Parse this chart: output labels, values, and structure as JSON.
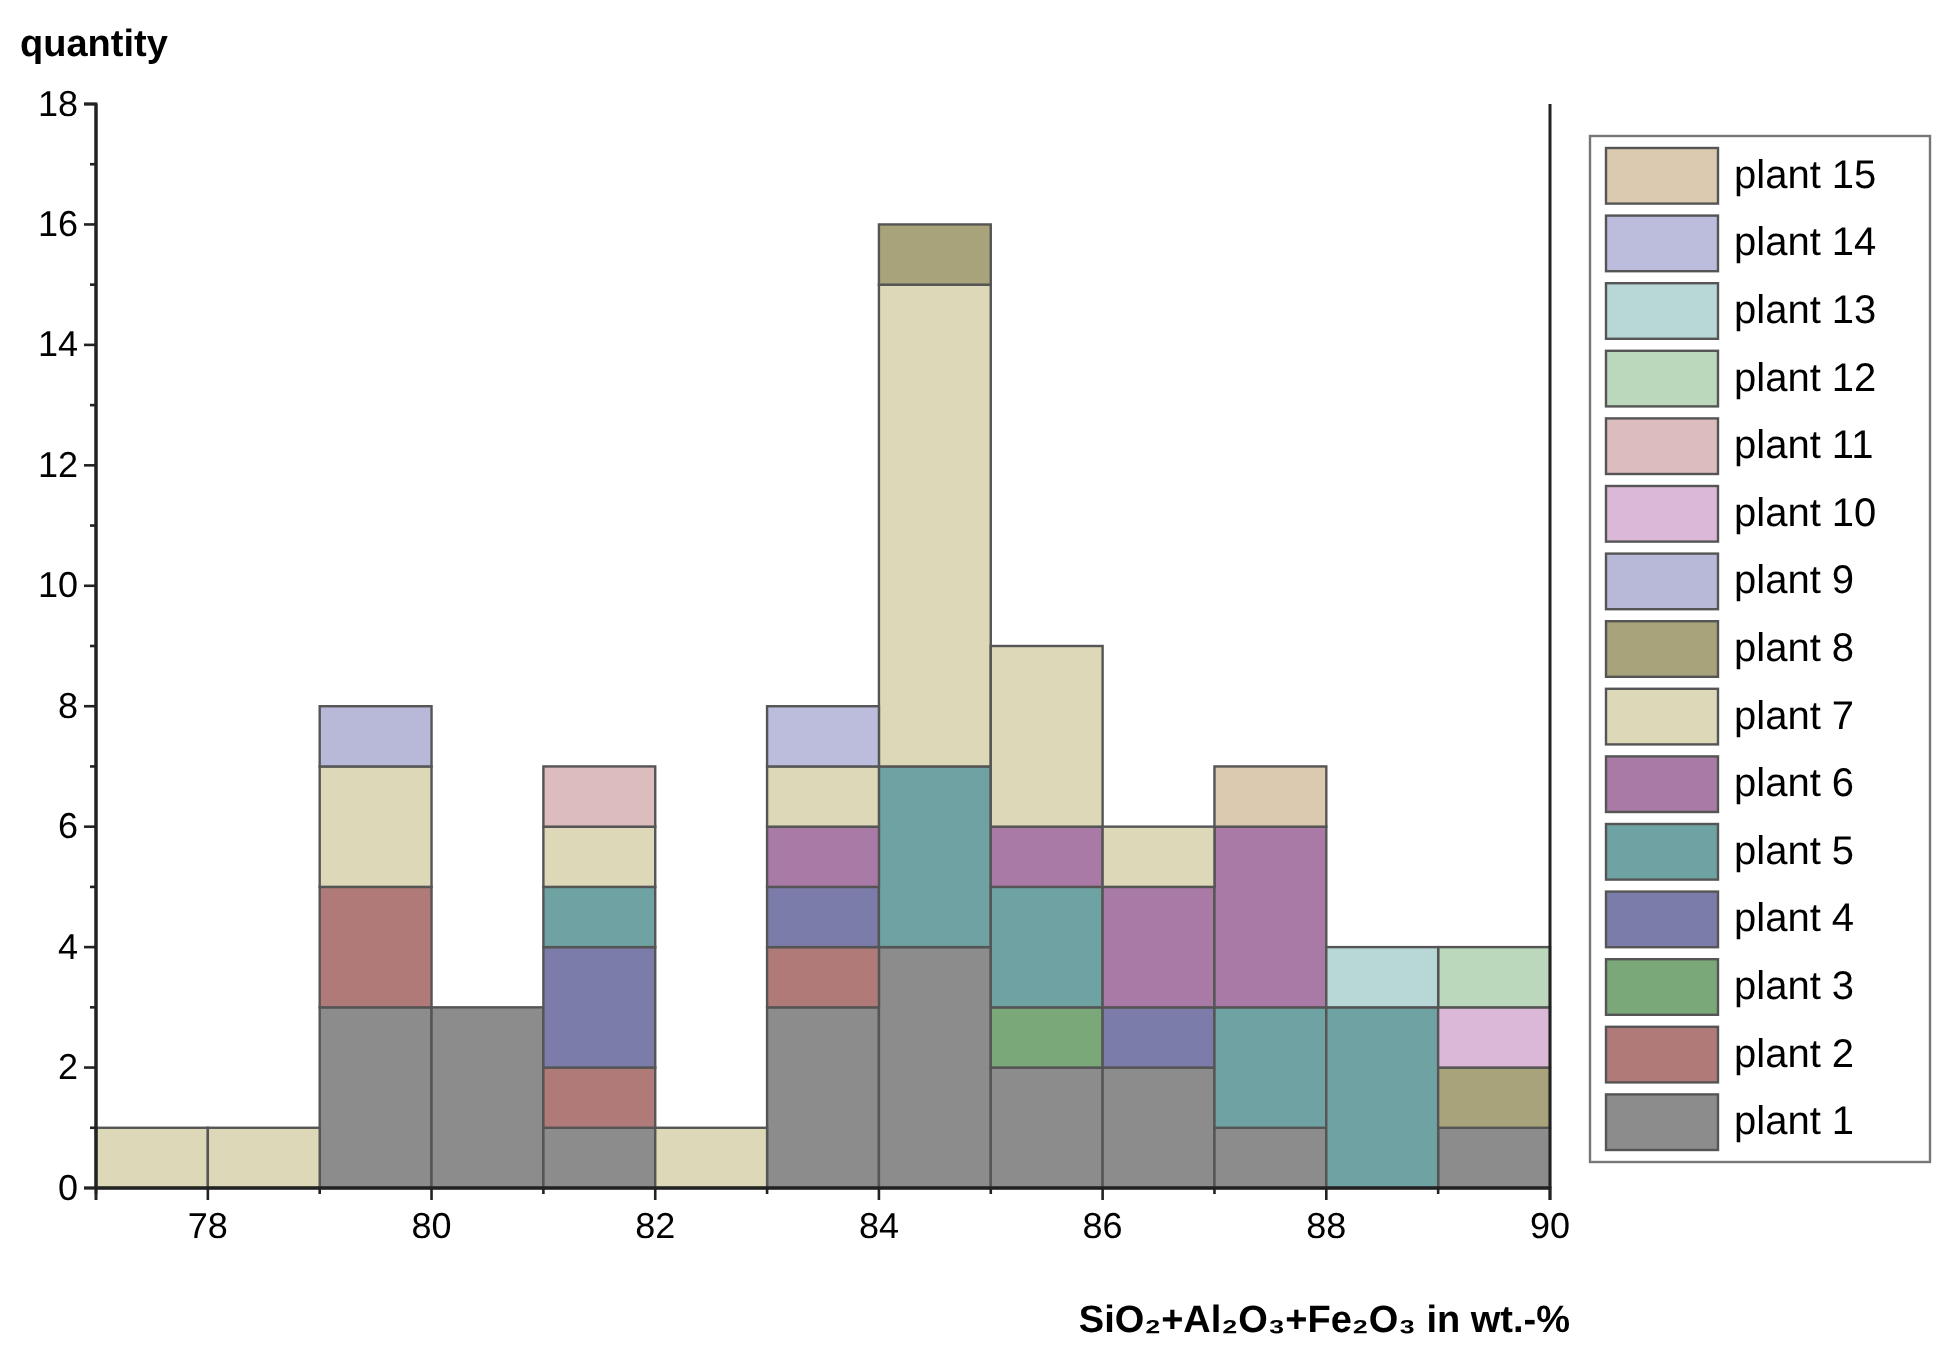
{
  "chart_data": {
    "type": "bar",
    "stacked": true,
    "ylabel": "quantity",
    "xlabel": "SiO₂+Al₂O₃+Fe₂O₃ in wt.-%",
    "x": [
      77.5,
      78.5,
      79.5,
      80.5,
      81.5,
      82.5,
      83.5,
      84.5,
      85.5,
      86.5,
      87.5,
      88.5,
      89.5
    ],
    "xlim": [
      77,
      90
    ],
    "xticks": [
      {
        "value": 77,
        "label": null
      },
      78,
      {
        "value": 79,
        "label": null
      },
      80,
      {
        "value": 81,
        "label": null
      },
      82,
      {
        "value": 83,
        "label": null
      },
      84,
      {
        "value": 85,
        "label": null
      },
      86,
      {
        "value": 87,
        "label": null
      },
      88,
      {
        "value": 89,
        "label": null
      },
      90
    ],
    "ylim": [
      0,
      18
    ],
    "yticks": [
      0,
      {
        "value": 1,
        "label": null
      },
      2,
      {
        "value": 3,
        "label": null
      },
      4,
      {
        "value": 5,
        "label": null
      },
      6,
      {
        "value": 7,
        "label": null
      },
      8,
      {
        "value": 9,
        "label": null
      },
      10,
      {
        "value": 11,
        "label": null
      },
      12,
      {
        "value": 13,
        "label": null
      },
      14,
      {
        "value": 15,
        "label": null
      },
      16,
      {
        "value": 17,
        "label": null
      },
      18
    ],
    "legend": "right",
    "grid": false,
    "series": [
      {
        "name": "plant 1",
        "color": "#8c8c8c",
        "values": [
          0,
          0,
          3,
          3,
          1,
          0,
          3,
          4,
          2,
          2,
          1,
          0,
          1
        ]
      },
      {
        "name": "plant 2",
        "color": "#b07a78",
        "values": [
          0,
          0,
          2,
          0,
          1,
          0,
          1,
          0,
          0,
          0,
          0,
          0,
          0
        ]
      },
      {
        "name": "plant 3",
        "color": "#7aa878",
        "values": [
          0,
          0,
          0,
          0,
          0,
          0,
          0,
          0,
          1,
          0,
          0,
          0,
          0
        ]
      },
      {
        "name": "plant 4",
        "color": "#7c7caa",
        "values": [
          0,
          0,
          0,
          0,
          2,
          0,
          1,
          0,
          0,
          1,
          0,
          0,
          0
        ]
      },
      {
        "name": "plant 5",
        "color": "#6fa3a3",
        "values": [
          0,
          0,
          0,
          0,
          1,
          0,
          0,
          3,
          2,
          0,
          2,
          3,
          0
        ]
      },
      {
        "name": "plant 6",
        "color": "#a97aa5",
        "values": [
          0,
          0,
          0,
          0,
          0,
          0,
          1,
          0,
          1,
          2,
          3,
          0,
          0
        ]
      },
      {
        "name": "plant 7",
        "color": "#dcd8b8",
        "values": [
          1,
          1,
          2,
          0,
          1,
          1,
          1,
          8,
          3,
          1,
          0,
          0,
          0
        ]
      },
      {
        "name": "plant 8",
        "color": "#a8a37a",
        "values": [
          0,
          0,
          0,
          0,
          0,
          0,
          0,
          1,
          0,
          0,
          0,
          0,
          1
        ]
      },
      {
        "name": "plant 9",
        "color": "#b8b8d8",
        "values": [
          0,
          0,
          1,
          0,
          0,
          0,
          0,
          0,
          0,
          0,
          0,
          0,
          0
        ]
      },
      {
        "name": "plant 10",
        "color": "#dcb8d8",
        "values": [
          0,
          0,
          0,
          0,
          0,
          0,
          0,
          0,
          0,
          0,
          0,
          0,
          1
        ]
      },
      {
        "name": "plant 11",
        "color": "#dcbcbc",
        "values": [
          0,
          0,
          0,
          0,
          1,
          0,
          0,
          0,
          0,
          0,
          0,
          0,
          0
        ]
      },
      {
        "name": "plant 12",
        "color": "#bcd8bc",
        "values": [
          0,
          0,
          0,
          0,
          0,
          0,
          0,
          0,
          0,
          0,
          0,
          0,
          1
        ]
      },
      {
        "name": "plant 13",
        "color": "#b8d8d8",
        "values": [
          0,
          0,
          0,
          0,
          0,
          0,
          0,
          0,
          0,
          0,
          0,
          1,
          0
        ]
      },
      {
        "name": "plant 14",
        "color": "#bcbcdc",
        "values": [
          0,
          0,
          0,
          0,
          0,
          0,
          1,
          0,
          0,
          0,
          0,
          0,
          0
        ]
      },
      {
        "name": "plant 15",
        "color": "#dccab0",
        "values": [
          0,
          0,
          0,
          0,
          0,
          0,
          0,
          0,
          0,
          0,
          1,
          0,
          0
        ]
      }
    ]
  }
}
